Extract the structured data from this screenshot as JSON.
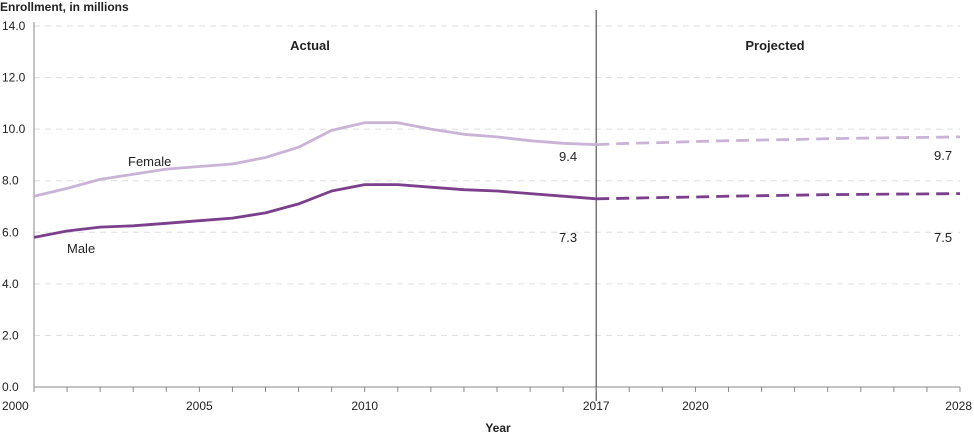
{
  "chart_data": {
    "type": "line",
    "title": "",
    "ylabel": "Enrollment, in millions",
    "xlabel": "Year",
    "xlim": [
      2000,
      2028
    ],
    "ylim": [
      0,
      14
    ],
    "y_ticks": [
      "0.0",
      "2.0",
      "4.0",
      "6.0",
      "8.0",
      "10.0",
      "12.0",
      "14.0"
    ],
    "x_ticks": [
      "2000",
      "2005",
      "2010",
      "2017",
      "2020",
      "2028"
    ],
    "grid": true,
    "divider_year": 2017,
    "region_labels": {
      "actual": "Actual",
      "projected": "Projected"
    },
    "series": [
      {
        "name": "Female",
        "color": "#c9b3d6",
        "actual": {
          "x": [
            2000,
            2001,
            2002,
            2003,
            2004,
            2005,
            2006,
            2007,
            2008,
            2009,
            2010,
            2011,
            2012,
            2013,
            2014,
            2015,
            2016,
            2017
          ],
          "y": [
            7.4,
            7.7,
            8.05,
            8.25,
            8.45,
            8.55,
            8.65,
            8.9,
            9.3,
            9.95,
            10.25,
            10.25,
            10.0,
            9.8,
            9.7,
            9.55,
            9.45,
            9.4
          ]
        },
        "projected": {
          "x": [
            2017,
            2018,
            2019,
            2020,
            2021,
            2022,
            2023,
            2024,
            2025,
            2026,
            2027,
            2028
          ],
          "y": [
            9.4,
            9.45,
            9.48,
            9.52,
            9.55,
            9.58,
            9.6,
            9.63,
            9.65,
            9.67,
            9.68,
            9.7
          ]
        },
        "start_label": "Female",
        "end_label_actual": "9.4",
        "end_label_projected": "9.7"
      },
      {
        "name": "Male",
        "color": "#7b3f8c",
        "actual": {
          "x": [
            2000,
            2001,
            2002,
            2003,
            2004,
            2005,
            2006,
            2007,
            2008,
            2009,
            2010,
            2011,
            2012,
            2013,
            2014,
            2015,
            2016,
            2017
          ],
          "y": [
            5.8,
            6.05,
            6.2,
            6.25,
            6.35,
            6.45,
            6.55,
            6.75,
            7.1,
            7.6,
            7.85,
            7.85,
            7.75,
            7.65,
            7.6,
            7.5,
            7.4,
            7.3
          ]
        },
        "projected": {
          "x": [
            2017,
            2018,
            2019,
            2020,
            2021,
            2022,
            2023,
            2024,
            2025,
            2026,
            2027,
            2028
          ],
          "y": [
            7.3,
            7.32,
            7.35,
            7.37,
            7.4,
            7.42,
            7.44,
            7.46,
            7.47,
            7.48,
            7.49,
            7.5
          ]
        },
        "start_label": "Male",
        "end_label_actual": "7.3",
        "end_label_projected": "7.5"
      }
    ]
  }
}
